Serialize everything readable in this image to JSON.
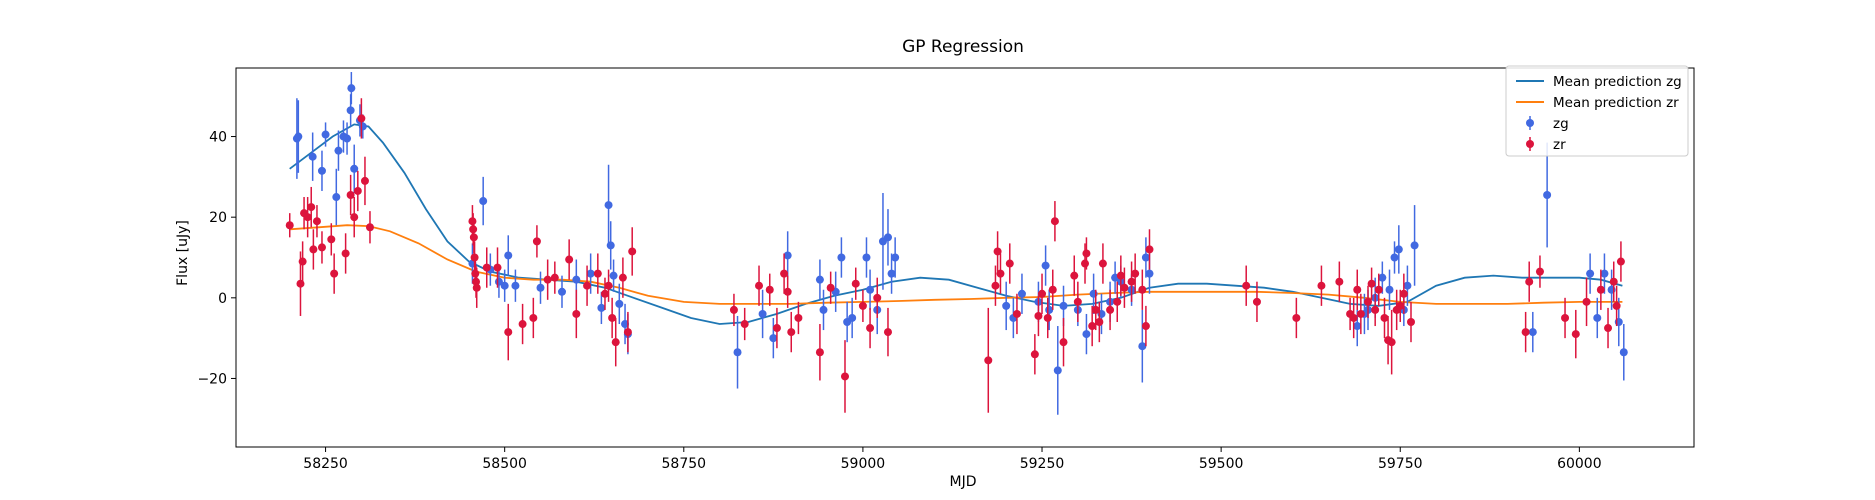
{
  "chart_data": {
    "type": "scatter",
    "title": "GP Regression",
    "xlabel": "MJD",
    "ylabel": "Flux [uJy]",
    "xlim": [
      58125,
      60160
    ],
    "ylim": [
      -37,
      57
    ],
    "xticks": [
      58250,
      58500,
      58750,
      59000,
      59250,
      59500,
      59750,
      60000
    ],
    "yticks": [
      -20,
      0,
      20,
      40
    ],
    "grid": false,
    "legend_position": "top-right",
    "colors": {
      "mean_zg": "#1f77b4",
      "mean_zr": "#ff7f0e",
      "zg": "#4169e1",
      "zr": "#dc143c"
    },
    "legend": {
      "mean_zg": "Mean prediction zg",
      "mean_zr": "Mean prediction zr",
      "zg": "zg",
      "zr": "zr"
    },
    "series": [
      {
        "name": "Mean prediction zg",
        "kind": "line",
        "x": [
          58200,
          58230,
          58260,
          58290,
          58310,
          58330,
          58360,
          58390,
          58420,
          58450,
          58480,
          58520,
          58560,
          58600,
          58640,
          58680,
          58720,
          58760,
          58800,
          58840,
          58880,
          58920,
          58960,
          59000,
          59040,
          59080,
          59120,
          59160,
          59200,
          59240,
          59280,
          59320,
          59360,
          59400,
          59440,
          59480,
          59520,
          59560,
          59600,
          59640,
          59680,
          59720,
          59760,
          59800,
          59840,
          59880,
          59920,
          59960,
          60000,
          60030,
          60060
        ],
        "y": [
          32,
          36,
          40,
          43,
          42.5,
          38.5,
          31,
          22,
          14,
          9,
          6.5,
          5,
          4.5,
          4,
          2.5,
          0,
          -2.5,
          -5,
          -6.5,
          -6,
          -4,
          -1.5,
          0.5,
          2,
          4,
          5,
          4.5,
          2.5,
          0.5,
          -1,
          -2,
          -1.5,
          0,
          2.5,
          3.5,
          3.5,
          3,
          2.5,
          1.5,
          0,
          -1.5,
          -2,
          -1,
          3,
          5,
          5.5,
          5,
          5,
          5,
          4.5,
          3
        ]
      },
      {
        "name": "Mean prediction zr",
        "kind": "line",
        "x": [
          58200,
          58240,
          58280,
          58310,
          58340,
          58380,
          58420,
          58460,
          58500,
          58540,
          58580,
          58620,
          58660,
          58700,
          58750,
          58800,
          58850,
          58900,
          58950,
          59000,
          59050,
          59100,
          59150,
          59200,
          59250,
          59300,
          59350,
          59400,
          59450,
          59500,
          59550,
          59600,
          59650,
          59700,
          59750,
          59800,
          59850,
          59900,
          59950,
          60000,
          60060
        ],
        "y": [
          17,
          17.5,
          18,
          17.8,
          16.5,
          13.5,
          9.5,
          6.5,
          5,
          4.5,
          4.5,
          4,
          2.5,
          0.5,
          -1,
          -1.5,
          -1.5,
          -1.5,
          -1.2,
          -1,
          -0.8,
          -0.5,
          -0.3,
          0,
          0.2,
          0.8,
          1.2,
          1.5,
          1.5,
          1.5,
          1.5,
          1.2,
          0.8,
          0,
          -1,
          -1.5,
          -1.5,
          -1.5,
          -1.2,
          -1,
          -1
        ]
      },
      {
        "name": "zg",
        "kind": "errorbar",
        "points": [
          [
            58210,
            39.5,
            10
          ],
          [
            58212,
            40,
            9
          ],
          [
            58232,
            35,
            6
          ],
          [
            58245,
            31.5,
            5
          ],
          [
            58250,
            40.5,
            3
          ],
          [
            58265,
            25,
            7
          ],
          [
            58268,
            36.5,
            5
          ],
          [
            58275,
            40,
            4
          ],
          [
            58280,
            39.5,
            4
          ],
          [
            58285,
            46.5,
            4
          ],
          [
            58286,
            52,
            4
          ],
          [
            58290,
            32,
            6
          ],
          [
            58298,
            44,
            4
          ],
          [
            58302,
            42.5,
            3
          ],
          [
            58455,
            8.5,
            5
          ],
          [
            58470,
            24,
            6
          ],
          [
            58480,
            7,
            4
          ],
          [
            58492,
            4,
            4
          ],
          [
            58500,
            3,
            4
          ],
          [
            58505,
            10.5,
            5
          ],
          [
            58515,
            3,
            4
          ],
          [
            58550,
            2.5,
            4
          ],
          [
            58580,
            1.5,
            4
          ],
          [
            58600,
            4.5,
            5
          ],
          [
            58620,
            6,
            5
          ],
          [
            58635,
            -2.5,
            4
          ],
          [
            58645,
            23,
            10
          ],
          [
            58648,
            13,
            6
          ],
          [
            58652,
            5.5,
            4
          ],
          [
            58660,
            -1.5,
            5
          ],
          [
            58668,
            -6.5,
            5
          ],
          [
            58672,
            -9,
            5
          ],
          [
            58825,
            -13.5,
            9
          ],
          [
            58860,
            -4,
            6
          ],
          [
            58875,
            -10,
            5
          ],
          [
            58895,
            10.5,
            6
          ],
          [
            58940,
            4.5,
            5
          ],
          [
            58945,
            -3,
            5
          ],
          [
            58962,
            1.5,
            5
          ],
          [
            58970,
            10,
            5
          ],
          [
            58978,
            -6,
            5
          ],
          [
            58985,
            -5,
            5
          ],
          [
            59005,
            10,
            5
          ],
          [
            59010,
            2,
            5
          ],
          [
            59020,
            -3,
            6
          ],
          [
            59028,
            14,
            12
          ],
          [
            59035,
            15,
            7
          ],
          [
            59040,
            6,
            5
          ],
          [
            59045,
            10,
            5
          ],
          [
            59200,
            -2,
            6
          ],
          [
            59210,
            -5,
            5
          ],
          [
            59222,
            1,
            5
          ],
          [
            59245,
            -1,
            5
          ],
          [
            59255,
            8,
            5
          ],
          [
            59260,
            -3,
            5
          ],
          [
            59272,
            -18,
            11
          ],
          [
            59280,
            -2,
            5
          ],
          [
            59300,
            -3,
            4
          ],
          [
            59312,
            -9,
            5
          ],
          [
            59322,
            1,
            5
          ],
          [
            59333,
            -4,
            5
          ],
          [
            59345,
            -1,
            5
          ],
          [
            59352,
            5,
            4
          ],
          [
            59360,
            4,
            4
          ],
          [
            59375,
            2,
            4
          ],
          [
            59390,
            -12,
            9
          ],
          [
            59395,
            10,
            5
          ],
          [
            59400,
            6,
            5
          ],
          [
            59690,
            -7,
            5
          ],
          [
            59700,
            -4,
            5
          ],
          [
            59705,
            -3,
            5
          ],
          [
            59715,
            0,
            5
          ],
          [
            59725,
            5,
            4
          ],
          [
            59735,
            2,
            5
          ],
          [
            59742,
            10,
            4
          ],
          [
            59748,
            12,
            6
          ],
          [
            59755,
            -3,
            4
          ],
          [
            59760,
            3,
            5
          ],
          [
            59770,
            13,
            10
          ],
          [
            59935,
            -8.5,
            5
          ],
          [
            59955,
            25.5,
            13
          ],
          [
            60015,
            6,
            5
          ],
          [
            60025,
            -5,
            5
          ],
          [
            60035,
            6,
            5
          ],
          [
            60045,
            2,
            5
          ],
          [
            60055,
            -6,
            6
          ],
          [
            60062,
            -13.5,
            7
          ]
        ]
      },
      {
        "name": "zr",
        "kind": "errorbar",
        "points": [
          [
            58200,
            18,
            3
          ],
          [
            58215,
            3.5,
            8
          ],
          [
            58218,
            9,
            5
          ],
          [
            58220,
            21,
            4
          ],
          [
            58225,
            20,
            5
          ],
          [
            58230,
            22.5,
            5
          ],
          [
            58233,
            12,
            5
          ],
          [
            58238,
            19,
            4
          ],
          [
            58245,
            12.5,
            4
          ],
          [
            58258,
            14.5,
            4
          ],
          [
            58262,
            6,
            5
          ],
          [
            58278,
            11,
            5
          ],
          [
            58285,
            25.5,
            5
          ],
          [
            58290,
            20,
            5
          ],
          [
            58295,
            26.5,
            5
          ],
          [
            58300,
            44.5,
            5
          ],
          [
            58305,
            29,
            6
          ],
          [
            58312,
            17.5,
            4
          ],
          [
            58455,
            19,
            4
          ],
          [
            58456,
            17,
            4
          ],
          [
            58457,
            15,
            4
          ],
          [
            58458,
            10,
            4
          ],
          [
            58459,
            6,
            4
          ],
          [
            58460,
            4,
            4
          ],
          [
            58461,
            2.5,
            5
          ],
          [
            58475,
            7.5,
            5
          ],
          [
            58490,
            7.5,
            5
          ],
          [
            58505,
            -8.5,
            7
          ],
          [
            58525,
            -6.5,
            5
          ],
          [
            58540,
            -5,
            5
          ],
          [
            58545,
            14,
            4
          ],
          [
            58560,
            4.5,
            5
          ],
          [
            58570,
            5,
            4
          ],
          [
            58590,
            9.5,
            5
          ],
          [
            58600,
            -4,
            6
          ],
          [
            58615,
            3,
            5
          ],
          [
            58630,
            6,
            5
          ],
          [
            58640,
            1,
            4
          ],
          [
            58645,
            3,
            4
          ],
          [
            58650,
            -5,
            5
          ],
          [
            58655,
            -11,
            6
          ],
          [
            58665,
            5,
            5
          ],
          [
            58672,
            -8.5,
            5
          ],
          [
            58678,
            11.5,
            6
          ],
          [
            58820,
            -3,
            4
          ],
          [
            58835,
            -6.5,
            4
          ],
          [
            58855,
            3,
            5
          ],
          [
            58870,
            2,
            4
          ],
          [
            58880,
            -7.5,
            5
          ],
          [
            58890,
            6,
            5
          ],
          [
            58895,
            1.5,
            4
          ],
          [
            58900,
            -8.5,
            5
          ],
          [
            58910,
            -5,
            4
          ],
          [
            58940,
            -13.5,
            7
          ],
          [
            58955,
            2.5,
            4
          ],
          [
            58975,
            -19.5,
            9
          ],
          [
            58990,
            3.5,
            4
          ],
          [
            59000,
            -2,
            4
          ],
          [
            59010,
            -7.5,
            5
          ],
          [
            59020,
            0,
            5
          ],
          [
            59035,
            -8.5,
            6
          ],
          [
            59175,
            -15.5,
            13
          ],
          [
            59185,
            3,
            5
          ],
          [
            59188,
            11.5,
            5
          ],
          [
            59192,
            6,
            5
          ],
          [
            59205,
            8.5,
            5
          ],
          [
            59215,
            -4,
            5
          ],
          [
            59240,
            -14,
            5
          ],
          [
            59245,
            -4.5,
            5
          ],
          [
            59250,
            1,
            5
          ],
          [
            59258,
            -5,
            5
          ],
          [
            59265,
            2,
            5
          ],
          [
            59268,
            19,
            5
          ],
          [
            59280,
            -11,
            6
          ],
          [
            59295,
            5.5,
            5
          ],
          [
            59300,
            -1,
            5
          ],
          [
            59310,
            8.5,
            5
          ],
          [
            59312,
            11,
            4
          ],
          [
            59320,
            -7,
            5
          ],
          [
            59325,
            -3,
            5
          ],
          [
            59330,
            -6,
            5
          ],
          [
            59335,
            8.5,
            5
          ],
          [
            59345,
            -3,
            5
          ],
          [
            59355,
            -1,
            5
          ],
          [
            59360,
            5.5,
            5
          ],
          [
            59365,
            2.5,
            5
          ],
          [
            59375,
            4,
            5
          ],
          [
            59380,
            6,
            5
          ],
          [
            59390,
            2,
            5
          ],
          [
            59395,
            -7,
            5
          ],
          [
            59400,
            12,
            5
          ],
          [
            59535,
            3,
            5
          ],
          [
            59550,
            -1,
            5
          ],
          [
            59605,
            -5,
            5
          ],
          [
            59640,
            3,
            5
          ],
          [
            59665,
            4,
            5
          ],
          [
            59680,
            -4,
            4
          ],
          [
            59685,
            -5,
            5
          ],
          [
            59690,
            2,
            5
          ],
          [
            59695,
            -4,
            5
          ],
          [
            59705,
            -1,
            4
          ],
          [
            59710,
            3.5,
            4
          ],
          [
            59715,
            -3,
            4
          ],
          [
            59720,
            2,
            4
          ],
          [
            59728,
            -5,
            5
          ],
          [
            59733,
            -10.5,
            6
          ],
          [
            59738,
            -11,
            8
          ],
          [
            59745,
            -3,
            5
          ],
          [
            59750,
            -2,
            4
          ],
          [
            59755,
            1,
            5
          ],
          [
            59765,
            -6,
            5
          ],
          [
            59925,
            -8.5,
            5
          ],
          [
            59930,
            4,
            5
          ],
          [
            59945,
            6.5,
            4
          ],
          [
            59980,
            -5,
            5
          ],
          [
            59995,
            -9,
            6
          ],
          [
            60010,
            -1,
            6
          ],
          [
            60030,
            2,
            5
          ],
          [
            60040,
            -7.5,
            5
          ],
          [
            60048,
            4,
            5
          ],
          [
            60052,
            -2,
            5
          ],
          [
            60058,
            9,
            5
          ]
        ]
      }
    ]
  }
}
